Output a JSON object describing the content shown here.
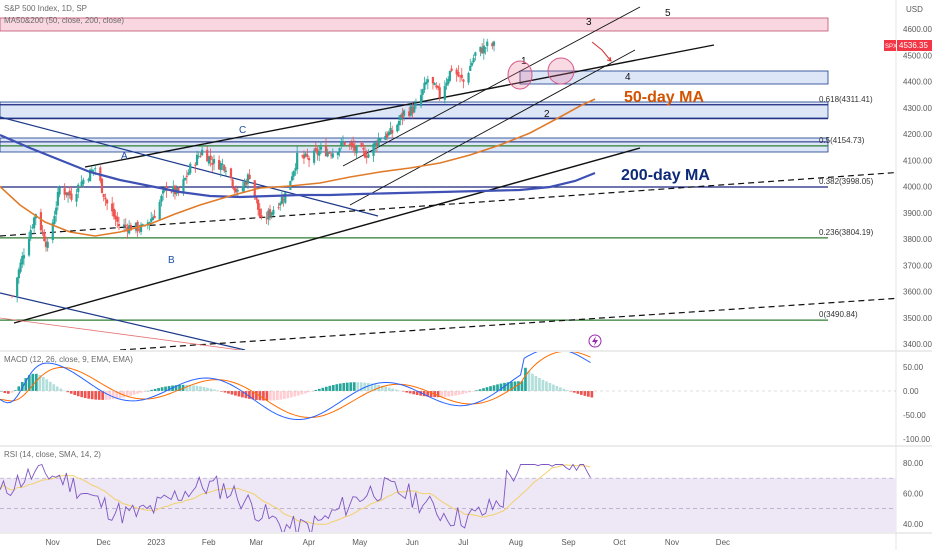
{
  "header": {
    "symbol_line": "S&P 500 Index, 1D, SP",
    "ma_line": "MA50&200 (50, close, 200, close)",
    "currency": "USD",
    "last_price_tag": "SPX",
    "last_price": "4536.35"
  },
  "price_axis": {
    "ticks": [
      "4600.00",
      "4500.00",
      "4400.00",
      "4300.00",
      "4200.00",
      "4100.00",
      "4000.00",
      "3900.00",
      "3800.00",
      "3700.00",
      "3600.00",
      "3500.00",
      "3400.00"
    ]
  },
  "time_axis": {
    "labels": [
      "Nov",
      "Dec",
      "2023",
      "Feb",
      "Mar",
      "Apr",
      "May",
      "Jun",
      "Jul",
      "Aug",
      "Sep",
      "Oct",
      "Nov",
      "Dec"
    ]
  },
  "annotations": {
    "ma50_label": "50-day MA",
    "ma200_label": "200-day MA",
    "waves": [
      "1",
      "2",
      "3",
      "4",
      "5"
    ],
    "abc": [
      "A",
      "B",
      "C"
    ]
  },
  "fib_levels": [
    {
      "label": "0.618(4311.41)",
      "value": 4311.41
    },
    {
      "label": "0.5(4154.73)",
      "value": 4154.73
    },
    {
      "label": "0.382(3998.05)",
      "value": 3998.05
    },
    {
      "label": "0.236(3804.19)",
      "value": 3804.19
    },
    {
      "label": "0(3490.84)",
      "value": 3490.84
    }
  ],
  "macd": {
    "header": "MACD (12, 26, close, 9, EMA, EMA)",
    "ticks": [
      "50.00",
      "0.00",
      "-50.00",
      "-100.00"
    ]
  },
  "rsi": {
    "header": "RSI (14, close, SMA, 14, 2)",
    "ticks": [
      "80.00",
      "60.00",
      "40.00"
    ]
  },
  "colors": {
    "candle_up": "#26a69a",
    "candle_down": "#ef5350",
    "ma50": "#e07b2a",
    "ma200": "#3f51b5",
    "fib": "#1a237e",
    "fib_green": "#2e7d32",
    "macd_line": "#2962ff",
    "signal_line": "#ff6d00",
    "rsi_line": "#7e57c2",
    "rsi_ma": "#f3d16b",
    "annotation_orange": "#d35400",
    "annotation_blue": "#0d2a7a"
  },
  "chart_data": {
    "type": "candlestick",
    "title": "S&P 500 Index, 1D, SP",
    "y_range": [
      3390,
      4650
    ],
    "x_axis": [
      "Nov",
      "Dec",
      "2023",
      "Feb",
      "Mar",
      "Apr",
      "May",
      "Jun",
      "Jul",
      "Aug",
      "Sep",
      "Oct",
      "Nov",
      "Dec"
    ],
    "close_path": [
      {
        "x": "Oct 14",
        "y": 3583
      },
      {
        "x": "Oct 21",
        "y": 3752
      },
      {
        "x": "Oct 28",
        "y": 3901
      },
      {
        "x": "Nov 4",
        "y": 3770
      },
      {
        "x": "Nov 11",
        "y": 3993
      },
      {
        "x": "Nov 18",
        "y": 3965
      },
      {
        "x": "Nov 25",
        "y": 4026
      },
      {
        "x": "Dec 2",
        "y": 4072
      },
      {
        "x": "Dec 9",
        "y": 3934
      },
      {
        "x": "Dec 16",
        "y": 3852
      },
      {
        "x": "Dec 23",
        "y": 3845
      },
      {
        "x": "Dec 30",
        "y": 3840
      },
      {
        "x": "Jan 6",
        "y": 3895
      },
      {
        "x": "Jan 13",
        "y": 3999
      },
      {
        "x": "Jan 20",
        "y": 3972
      },
      {
        "x": "Jan 27",
        "y": 4070
      },
      {
        "x": "Feb 3",
        "y": 4136
      },
      {
        "x": "Feb 10",
        "y": 4090
      },
      {
        "x": "Feb 17",
        "y": 4079
      },
      {
        "x": "Feb 24",
        "y": 3970
      },
      {
        "x": "Mar 3",
        "y": 4045
      },
      {
        "x": "Mar 10",
        "y": 3861
      },
      {
        "x": "Mar 17",
        "y": 3916
      },
      {
        "x": "Mar 24",
        "y": 3971
      },
      {
        "x": "Mar 31",
        "y": 4109
      },
      {
        "x": "Apr 7",
        "y": 4105
      },
      {
        "x": "Apr 14",
        "y": 4137
      },
      {
        "x": "Apr 21",
        "y": 4133
      },
      {
        "x": "Apr 28",
        "y": 4169
      },
      {
        "x": "May 5",
        "y": 4136
      },
      {
        "x": "May 12",
        "y": 4124
      },
      {
        "x": "May 19",
        "y": 4191
      },
      {
        "x": "May 26",
        "y": 4205
      },
      {
        "x": "Jun 2",
        "y": 4282
      },
      {
        "x": "Jun 9",
        "y": 4298
      },
      {
        "x": "Jun 16",
        "y": 4409
      },
      {
        "x": "Jun 23",
        "y": 4348
      },
      {
        "x": "Jun 30",
        "y": 4450
      },
      {
        "x": "Jul 7",
        "y": 4398
      },
      {
        "x": "Jul 14",
        "y": 4505
      },
      {
        "x": "Jul 21",
        "y": 4536
      }
    ],
    "series": [
      {
        "name": "MA 50",
        "values": [
          3700,
          3760,
          3850,
          3920,
          3980,
          4010,
          4040,
          4080,
          4140,
          4200,
          4290,
          4330
        ]
      },
      {
        "name": "MA 200",
        "values": [
          3940,
          3960,
          3990,
          3990,
          3980,
          3990,
          3995,
          4000,
          4010,
          4030,
          4060
        ]
      }
    ],
    "fib_retracement": [
      4311.41,
      4154.73,
      3998.05,
      3804.19,
      3490.84
    ],
    "last_value": 4536.35
  }
}
